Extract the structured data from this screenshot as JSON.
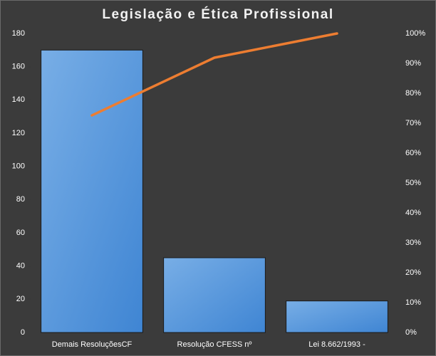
{
  "chart_data": {
    "type": "bar",
    "title": "Legislação  e Ética Profissional",
    "categories": [
      "Demais ResoluçõesCF",
      "Resolução CFESS nº",
      "Lei 8.662/1993 -"
    ],
    "series": [
      {
        "type": "bar",
        "color": "#4a8fd9",
        "values": [
          170,
          45,
          19
        ]
      },
      {
        "type": "line",
        "axis": "y2",
        "color": "#ed7d31",
        "values": [
          72.6,
          91.9,
          100
        ]
      }
    ],
    "ylim": [
      0,
      180
    ],
    "yticks": [
      0,
      20,
      40,
      60,
      80,
      100,
      120,
      140,
      160,
      180
    ],
    "y2lim": [
      0,
      100
    ],
    "y2ticks": [
      {
        "value": 0,
        "label": "0%"
      },
      {
        "value": 10,
        "label": "10%"
      },
      {
        "value": 20,
        "label": "20%"
      },
      {
        "value": 30,
        "label": "30%"
      },
      {
        "value": 40,
        "label": "40%"
      },
      {
        "value": 50,
        "label": "50%"
      },
      {
        "value": 60,
        "label": "60%"
      },
      {
        "value": 70,
        "label": "70%"
      },
      {
        "value": 80,
        "label": "80%"
      },
      {
        "value": 90,
        "label": "90%"
      },
      {
        "value": 100,
        "label": "100%"
      }
    ],
    "grid": false
  }
}
